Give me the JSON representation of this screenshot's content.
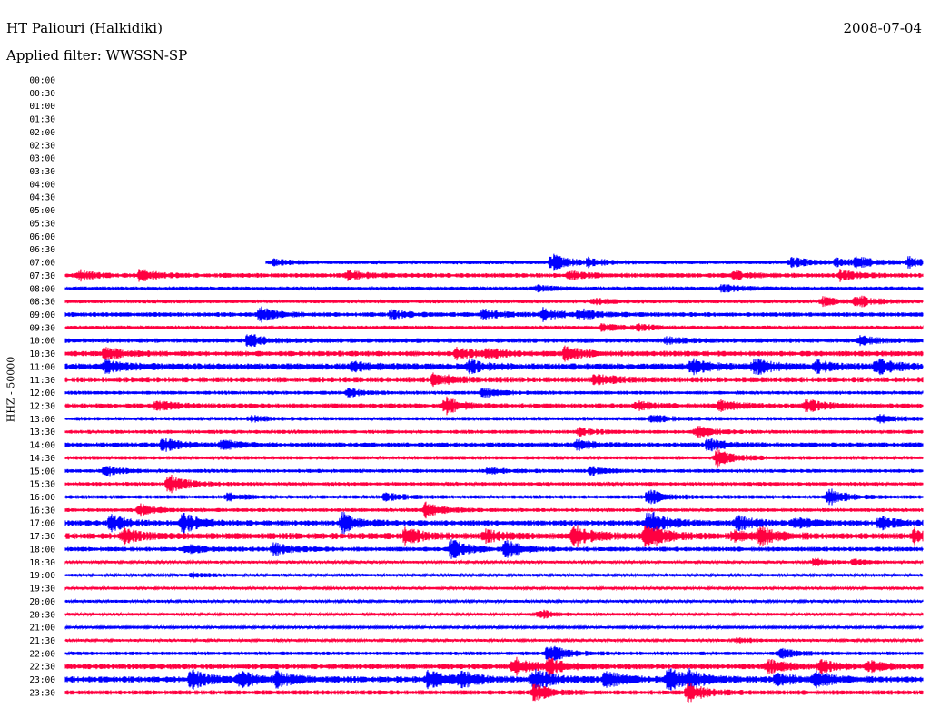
{
  "header": {
    "station": "HT Paliouri (Halkidiki)",
    "date": "2008-07-04",
    "filter": "Applied filter: WWSSN-SP"
  },
  "chart_data": {
    "type": "line",
    "title": "HT Paliouri (Halkidiki)",
    "subtitle": "Applied filter: WWSSN-SP",
    "date": "2008-07-04",
    "ylabel": "HHZ - 50000",
    "xlabel": "",
    "grid": false,
    "line_minutes": 30,
    "data_start": "07:00",
    "colors": {
      "even_row": "#0000ff",
      "odd_row": "#ff0040"
    },
    "y_tick_labels": [
      "00:00",
      "00:30",
      "01:00",
      "01:30",
      "02:00",
      "02:30",
      "03:00",
      "03:30",
      "04:00",
      "04:30",
      "05:00",
      "05:30",
      "06:00",
      "06:30",
      "07:00",
      "07:30",
      "08:00",
      "08:30",
      "09:00",
      "09:30",
      "10:00",
      "10:30",
      "11:00",
      "11:30",
      "12:00",
      "12:30",
      "13:00",
      "13:30",
      "14:00",
      "14:30",
      "15:00",
      "15:30",
      "16:00",
      "16:30",
      "17:00",
      "17:30",
      "18:00",
      "18:30",
      "19:00",
      "19:30",
      "20:00",
      "20:30",
      "21:00",
      "21:30",
      "22:00",
      "22:30",
      "23:00",
      "23:30"
    ],
    "series": [
      {
        "time": "07:00",
        "noise": 2.0,
        "events": [
          [
            7.3,
            3
          ],
          [
            17.0,
            9
          ],
          [
            18.3,
            4
          ],
          [
            25.4,
            5
          ],
          [
            27.0,
            4
          ],
          [
            27.7,
            5
          ],
          [
            29.5,
            6
          ]
        ]
      },
      {
        "time": "07:30",
        "noise": 2.5,
        "events": [
          [
            0.5,
            5
          ],
          [
            2.6,
            6
          ],
          [
            9.9,
            5
          ],
          [
            17.6,
            4
          ],
          [
            23.4,
            4
          ],
          [
            27.1,
            5
          ]
        ]
      },
      {
        "time": "08:00",
        "noise": 2.0,
        "events": [
          [
            16.5,
            3
          ],
          [
            23.0,
            4
          ]
        ]
      },
      {
        "time": "08:30",
        "noise": 2.0,
        "events": [
          [
            18.5,
            3
          ],
          [
            26.5,
            4
          ],
          [
            27.7,
            6
          ]
        ]
      },
      {
        "time": "09:00",
        "noise": 2.5,
        "events": [
          [
            6.8,
            8
          ],
          [
            11.4,
            4
          ],
          [
            14.6,
            5
          ],
          [
            16.7,
            6
          ],
          [
            18.0,
            5
          ]
        ]
      },
      {
        "time": "09:30",
        "noise": 2.0,
        "events": [
          [
            18.8,
            4
          ],
          [
            20.0,
            3
          ]
        ]
      },
      {
        "time": "10:00",
        "noise": 2.5,
        "events": [
          [
            6.4,
            7
          ],
          [
            21.0,
            3
          ],
          [
            27.8,
            4
          ]
        ]
      },
      {
        "time": "10:30",
        "noise": 3.0,
        "events": [
          [
            1.4,
            6
          ],
          [
            13.7,
            6
          ],
          [
            14.8,
            5
          ],
          [
            17.5,
            7
          ]
        ]
      },
      {
        "time": "11:00",
        "noise": 3.5,
        "events": [
          [
            1.4,
            7
          ],
          [
            10.1,
            4
          ],
          [
            14.1,
            6
          ],
          [
            21.9,
            7
          ],
          [
            24.1,
            8
          ],
          [
            26.3,
            5
          ],
          [
            28.4,
            7
          ]
        ]
      },
      {
        "time": "11:30",
        "noise": 3.0,
        "events": [
          [
            12.9,
            7
          ],
          [
            18.5,
            6
          ]
        ]
      },
      {
        "time": "12:00",
        "noise": 2.0,
        "events": [
          [
            9.9,
            4
          ],
          [
            14.6,
            5
          ]
        ]
      },
      {
        "time": "12:30",
        "noise": 2.5,
        "events": [
          [
            3.2,
            5
          ],
          [
            13.3,
            9
          ],
          [
            20.0,
            4
          ],
          [
            22.9,
            6
          ],
          [
            25.9,
            7
          ]
        ]
      },
      {
        "time": "13:00",
        "noise": 2.0,
        "events": [
          [
            6.5,
            3
          ],
          [
            20.5,
            4
          ],
          [
            28.5,
            4
          ]
        ]
      },
      {
        "time": "13:30",
        "noise": 2.0,
        "events": [
          [
            18.0,
            4
          ],
          [
            22.1,
            6
          ]
        ]
      },
      {
        "time": "14:00",
        "noise": 2.5,
        "events": [
          [
            3.4,
            7
          ],
          [
            5.5,
            5
          ],
          [
            17.9,
            5
          ],
          [
            22.5,
            7
          ]
        ]
      },
      {
        "time": "14:30",
        "noise": 2.0,
        "events": [
          [
            22.8,
            10
          ]
        ]
      },
      {
        "time": "15:00",
        "noise": 2.0,
        "events": [
          [
            1.4,
            5
          ],
          [
            14.8,
            4
          ],
          [
            18.4,
            4
          ]
        ]
      },
      {
        "time": "15:30",
        "noise": 2.0,
        "events": [
          [
            3.6,
            11
          ]
        ]
      },
      {
        "time": "16:00",
        "noise": 2.0,
        "events": [
          [
            5.7,
            4
          ],
          [
            11.2,
            4
          ],
          [
            20.4,
            8
          ],
          [
            26.7,
            9
          ]
        ]
      },
      {
        "time": "16:30",
        "noise": 2.0,
        "events": [
          [
            2.6,
            6
          ],
          [
            12.6,
            8
          ]
        ]
      },
      {
        "time": "17:00",
        "noise": 3.0,
        "events": [
          [
            1.6,
            8
          ],
          [
            4.1,
            10
          ],
          [
            9.7,
            10
          ],
          [
            20.4,
            15
          ],
          [
            23.5,
            8
          ],
          [
            25.5,
            6
          ],
          [
            28.5,
            7
          ]
        ]
      },
      {
        "time": "17:30",
        "noise": 3.5,
        "events": [
          [
            2.0,
            7
          ],
          [
            11.9,
            8
          ],
          [
            14.7,
            6
          ],
          [
            17.8,
            11
          ],
          [
            20.3,
            14
          ],
          [
            23.4,
            6
          ],
          [
            24.3,
            8
          ],
          [
            29.7,
            7
          ]
        ]
      },
      {
        "time": "18:00",
        "noise": 2.5,
        "events": [
          [
            4.2,
            5
          ],
          [
            7.3,
            6
          ],
          [
            13.5,
            10
          ],
          [
            15.4,
            9
          ]
        ]
      },
      {
        "time": "18:30",
        "noise": 1.5,
        "events": [
          [
            26.2,
            4
          ],
          [
            27.6,
            3
          ]
        ]
      },
      {
        "time": "19:00",
        "noise": 1.5,
        "events": [
          [
            4.4,
            3
          ]
        ]
      },
      {
        "time": "19:30",
        "noise": 1.5,
        "events": []
      },
      {
        "time": "20:00",
        "noise": 1.5,
        "events": []
      },
      {
        "time": "20:30",
        "noise": 1.5,
        "events": [
          [
            16.6,
            5
          ]
        ]
      },
      {
        "time": "21:00",
        "noise": 1.2,
        "events": []
      },
      {
        "time": "21:30",
        "noise": 1.5,
        "events": [
          [
            23.5,
            3
          ]
        ]
      },
      {
        "time": "22:00",
        "noise": 2.0,
        "events": [
          [
            16.9,
            10
          ],
          [
            25.0,
            5
          ]
        ]
      },
      {
        "time": "22:30",
        "noise": 3.0,
        "events": [
          [
            15.7,
            9
          ],
          [
            16.9,
            8
          ],
          [
            24.6,
            7
          ],
          [
            26.4,
            6
          ],
          [
            28.1,
            5
          ]
        ]
      },
      {
        "time": "23:00",
        "noise": 3.5,
        "events": [
          [
            4.4,
            9
          ],
          [
            6.1,
            8
          ],
          [
            7.4,
            7
          ],
          [
            12.7,
            9
          ],
          [
            13.8,
            8
          ],
          [
            16.4,
            12
          ],
          [
            18.9,
            9
          ],
          [
            21.1,
            11
          ],
          [
            21.8,
            7
          ],
          [
            24.9,
            6
          ],
          [
            26.2,
            8
          ]
        ]
      },
      {
        "time": "23:30",
        "noise": 2.5,
        "events": [
          [
            16.4,
            9
          ],
          [
            21.8,
            10
          ]
        ]
      }
    ]
  }
}
